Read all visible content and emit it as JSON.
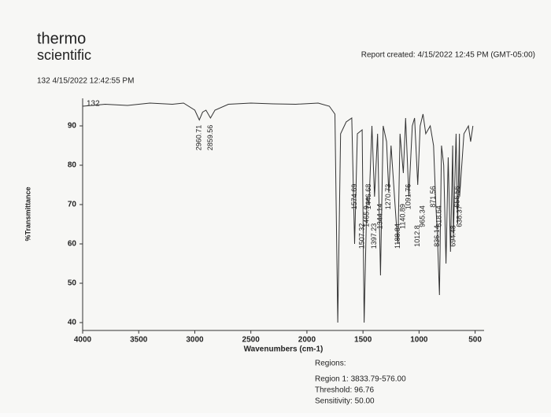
{
  "document": {
    "brand_top": "thermo",
    "brand_bottom": "scientific",
    "report_created": "Report created: 4/15/2022 12:45 PM (GMT-05:00)",
    "sample_header": "132 4/15/2022 12:42:55 PM",
    "regions_title": "Regions:",
    "region_1": "Region 1: 3833.79-576.00",
    "threshold": "Threshold: 96.76",
    "sensitivity": "Sensitivity: 50.00"
  },
  "chart_data": {
    "type": "line",
    "x_label": "Wavenumbers (cm-1)",
    "y_label": "%Transmittance",
    "x": [
      4000,
      3800,
      3600,
      3400,
      3200,
      3100,
      3000,
      2960,
      2930,
      2900,
      2860,
      2820,
      2700,
      2500,
      2300,
      2100,
      1900,
      1800,
      1750,
      1725,
      1700,
      1650,
      1600,
      1575,
      1550,
      1507,
      1490,
      1465,
      1446,
      1420,
      1397,
      1370,
      1344,
      1320,
      1290,
      1270,
      1250,
      1205,
      1188,
      1170,
      1140,
      1120,
      1091,
      1060,
      1040,
      1012,
      990,
      965,
      940,
      900,
      871,
      850,
      836,
      818,
      800,
      780,
      760,
      740,
      720,
      700,
      694,
      670,
      656,
      640,
      638,
      600,
      560,
      540,
      520
    ],
    "series": [
      {
        "name": "132",
        "color": "#333333",
        "values": [
          95,
          95.5,
          95.2,
          95.8,
          95.5,
          95.8,
          94,
          91.5,
          93.5,
          94,
          92,
          94,
          95.5,
          95.8,
          95.6,
          95.5,
          95.8,
          95,
          93,
          40,
          88,
          91,
          92,
          60,
          88,
          89,
          40,
          72,
          70,
          90,
          72,
          88,
          52,
          90,
          86,
          73,
          85,
          66,
          60,
          88,
          78,
          92,
          72,
          90,
          92,
          75,
          90,
          93,
          88,
          90,
          85,
          70,
          62,
          47,
          85,
          80,
          55,
          82,
          58,
          85,
          62,
          88,
          65,
          88,
          72,
          88,
          90,
          86,
          90
        ]
      }
    ],
    "peaks": [
      2960.71,
      2859.56,
      1574.69,
      1507.32,
      1465.9,
      1446.68,
      1397.23,
      1344.14,
      1270.73,
      1188.84,
      1140.89,
      1091.76,
      1012.8,
      965.34,
      871.56,
      836.14,
      818.64,
      656.56,
      694.48,
      638.37
    ],
    "xlim": [
      4000,
      420
    ],
    "ylim": [
      38,
      97
    ],
    "xticks": [
      4000,
      3500,
      3000,
      2500,
      2000,
      1500,
      1000,
      500
    ],
    "yticks": [
      40,
      50,
      60,
      70,
      80,
      90
    ]
  }
}
